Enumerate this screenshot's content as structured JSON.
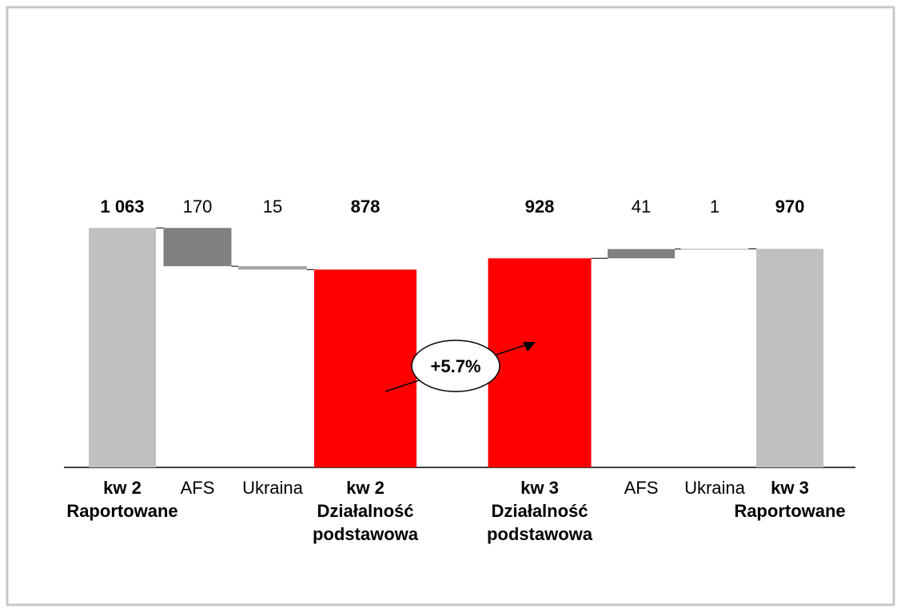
{
  "chart_data": {
    "type": "waterfall",
    "categories": [
      [
        "kw 2",
        "Raportowane"
      ],
      [
        "AFS"
      ],
      [
        "Ukraina"
      ],
      [
        "kw 2",
        "Działalność",
        "podstawowa"
      ],
      [
        "kw 3",
        "Działalność",
        "podstawowa"
      ],
      [
        "AFS"
      ],
      [
        "Ukraina"
      ],
      [
        "kw 3",
        "Raportowane"
      ]
    ],
    "values": [
      1063,
      170,
      15,
      878,
      928,
      41,
      1,
      970
    ],
    "value_labels": [
      "1 063",
      "170",
      "15",
      "878",
      "928",
      "41",
      "1",
      "970"
    ],
    "measures": [
      "total",
      "decrease",
      "decrease",
      "total",
      "total",
      "increase",
      "increase",
      "total"
    ],
    "colors": [
      "#c0c0c0",
      "#808080",
      "#a6a6a6",
      "#ff0000",
      "#ff0000",
      "#808080",
      "#a6a6a6",
      "#c0c0c0"
    ],
    "annotation": "+5.7%"
  }
}
